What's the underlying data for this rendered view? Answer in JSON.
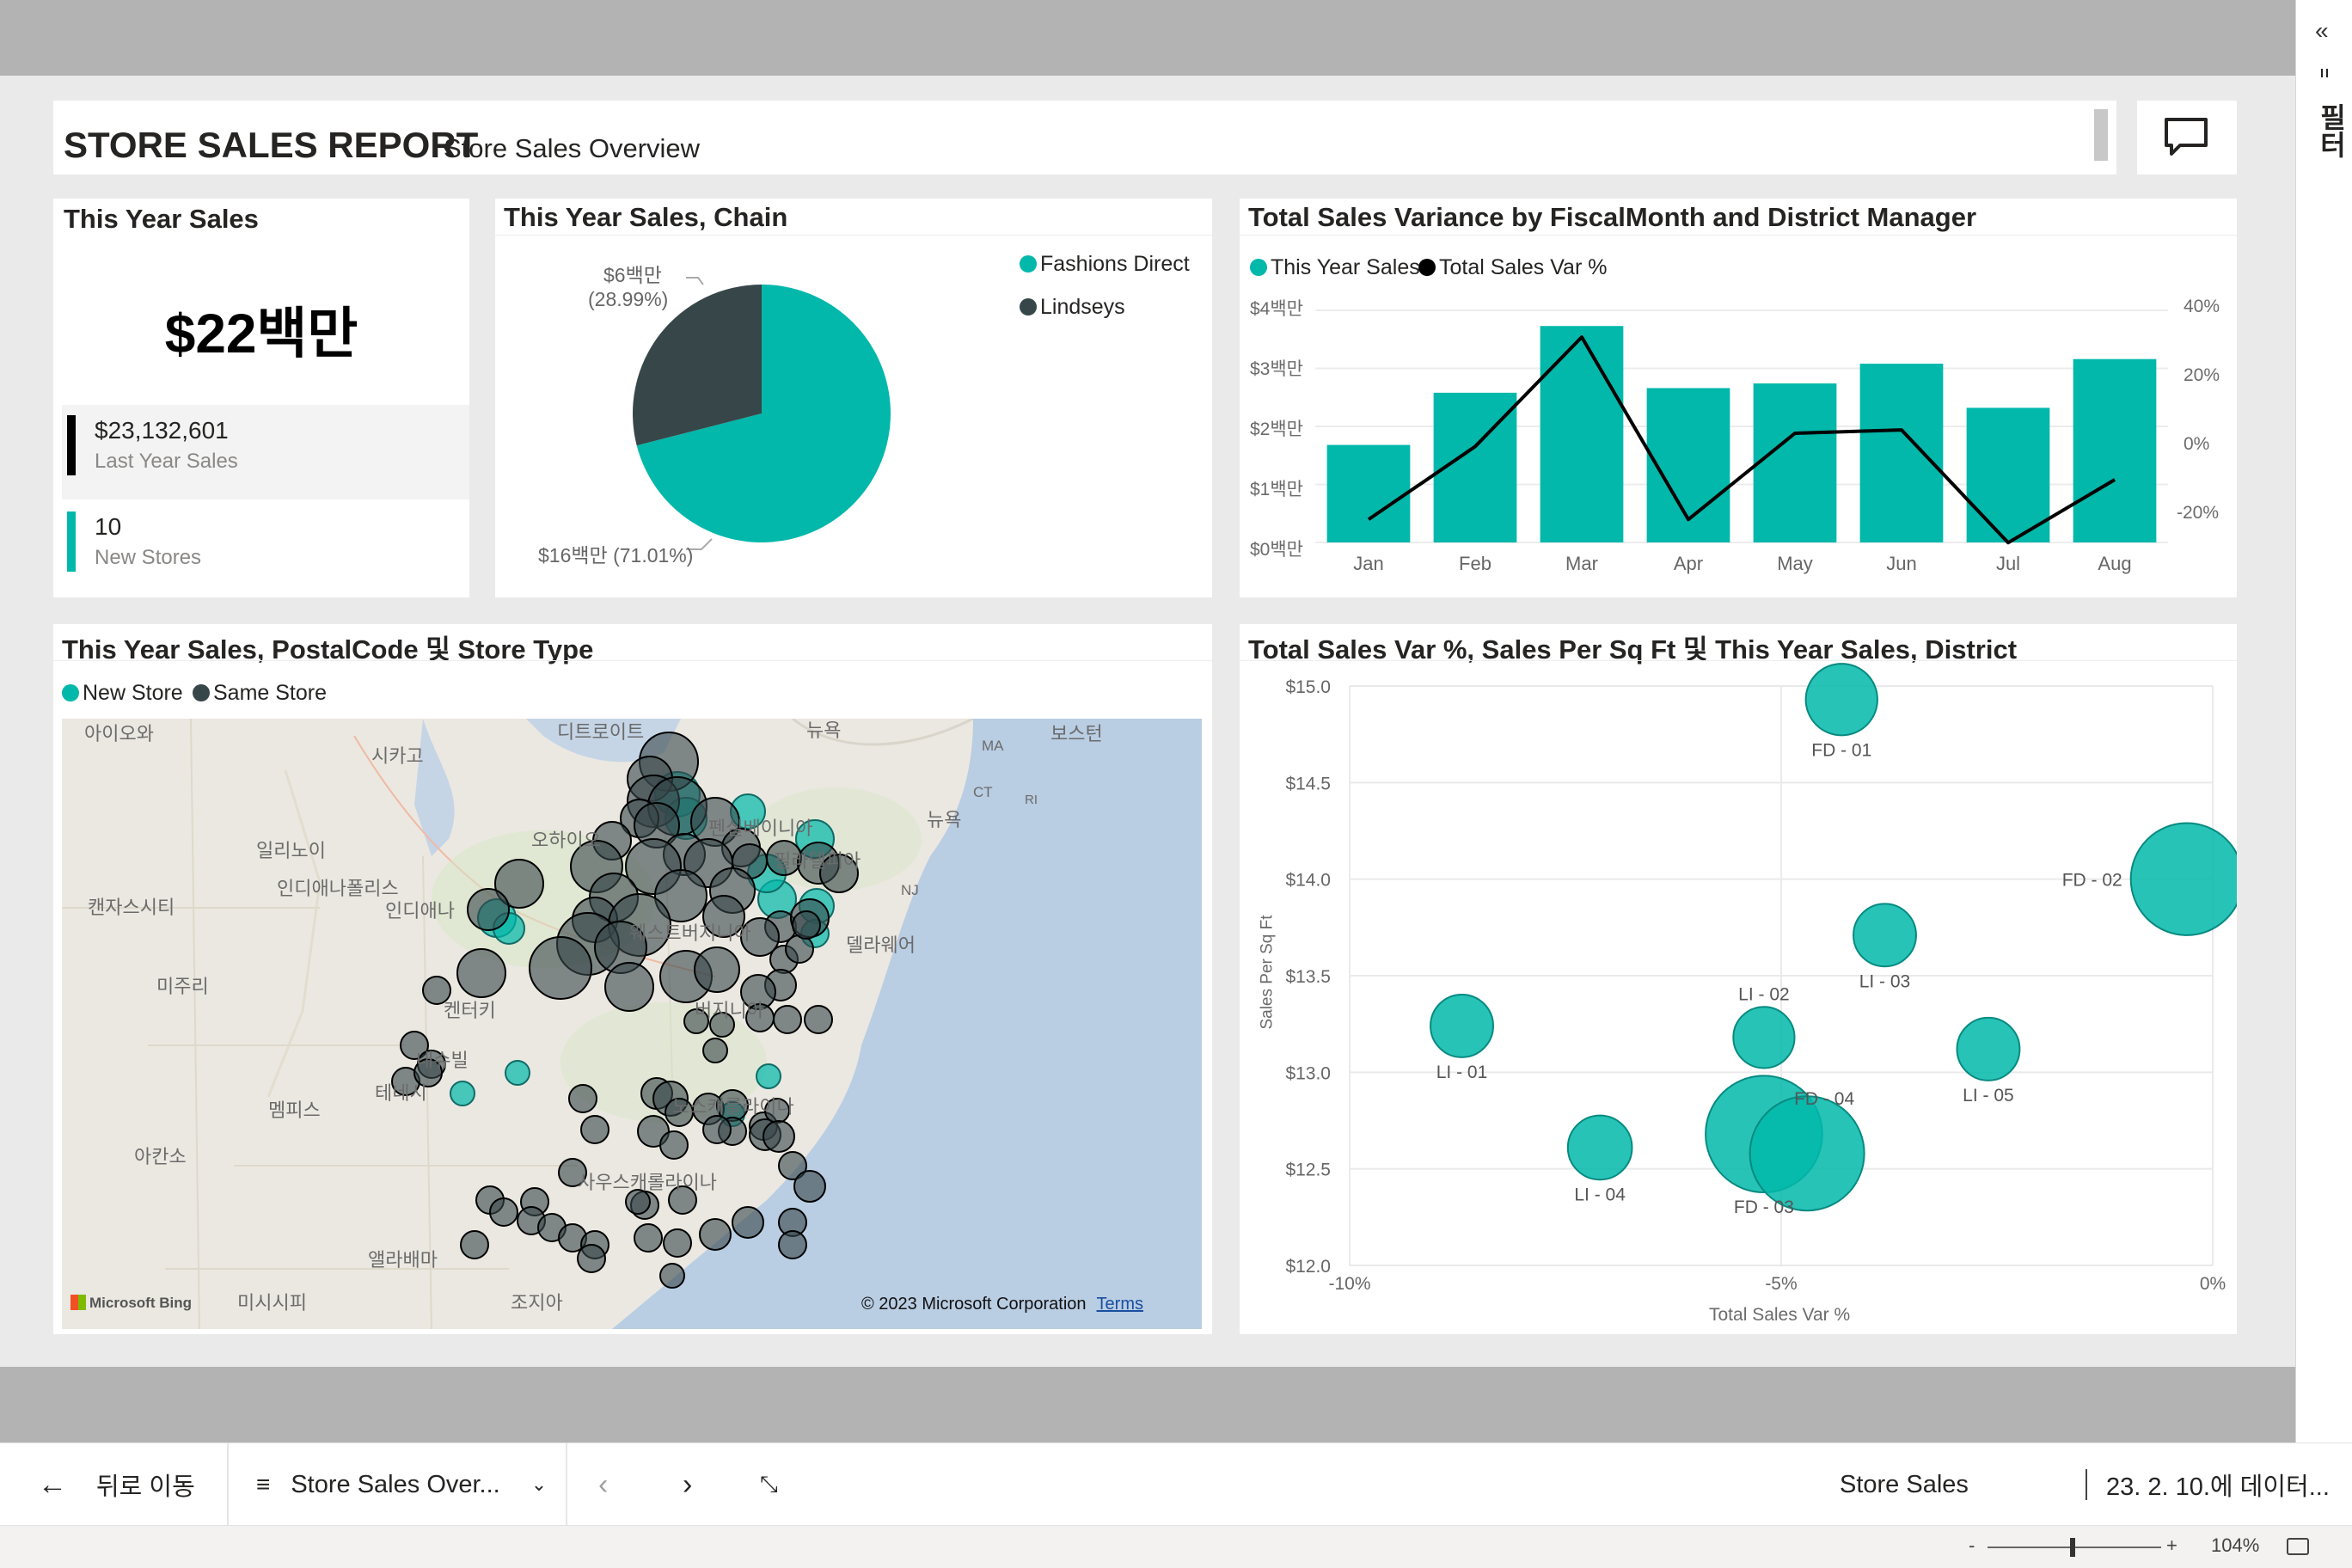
{
  "report": {
    "title": "STORE SALES REPORT",
    "subtitle": "Store Sales Overview",
    "comment_icon": "comment-icon"
  },
  "right_pane": {
    "collapse": "«",
    "label": "필터",
    "icon": "filter-icon"
  },
  "kpi": {
    "title": "This Year Sales",
    "value": "$22백만",
    "rows": [
      {
        "value": "$23,132,601",
        "label": "Last Year Sales",
        "color": "#000000"
      },
      {
        "value": "10",
        "label": "New Stores",
        "color": "#01b8aa"
      }
    ]
  },
  "pie": {
    "title": "This Year Sales, Chain",
    "label_small_1": "$6백만",
    "label_small_2": "(28.99%)",
    "label_big": "$16백만 (71.01%)",
    "legend": [
      {
        "name": "Fashions Direct",
        "color": "#01b8aa"
      },
      {
        "name": "Lindseys",
        "color": "#374649"
      }
    ]
  },
  "variance": {
    "title": "Total Sales Variance by FiscalMonth and District Manager",
    "legend": [
      {
        "name": "This Year Sales",
        "color": "#01b8aa"
      },
      {
        "name": "Total Sales Var %",
        "color": "#000000"
      }
    ],
    "y_left_ticks": [
      "$4백만",
      "$3백만",
      "$2백만",
      "$1백만",
      "$0백만"
    ],
    "y_right_ticks": [
      "40%",
      "20%",
      "0%",
      "-20%"
    ]
  },
  "map": {
    "title": "This Year Sales, PostalCode 및 Store Type",
    "legend": [
      {
        "name": "New Store",
        "color": "#01b8aa"
      },
      {
        "name": "Same Store",
        "color": "#374649"
      }
    ],
    "places": {
      "p1": "아이오와",
      "p2": "시카고",
      "p3": "디트로이트",
      "p4": "뉴욕",
      "p5": "보스턴",
      "p6": "일리노이",
      "p7": "인디애나폴리스",
      "p8": "인디애나",
      "p9": "캔자스시티",
      "p10": "미주리",
      "p11": "오하이오",
      "p12": "펜실베이니아",
      "p13": "필라델피아",
      "p14": "뉴욕",
      "p15": "NJ",
      "p16": "MA",
      "p17": "CT",
      "p18": "RI",
      "p19": "델라웨어",
      "p20": "켄터키",
      "p21": "테네시",
      "p22": "멤피스",
      "p23": "아칸소",
      "p24": "앨라배마",
      "p25": "미시시피",
      "p26": "조지아",
      "p27": "웨스트버지니아",
      "p28": "버지니아",
      "p29": "내슈빌",
      "p30": "노스캐롤라이나",
      "p31": "사우스캐롤라이나"
    },
    "bing": "Microsoft Bing",
    "copyright": "© 2023 Microsoft Corporation",
    "terms": "Terms"
  },
  "scatter": {
    "title": "Total Sales Var %, Sales Per Sq Ft 및 This Year Sales, District",
    "xlabel": "Total Sales Var %",
    "ylabel": "Sales Per Sq Ft"
  },
  "chart_data": [
    {
      "type": "pie",
      "title": "This Year Sales, Chain",
      "categories": [
        "Fashions Direct",
        "Lindseys"
      ],
      "values": [
        71.01,
        28.99
      ],
      "labels": [
        "$16백만 (71.01%)",
        "$6백만 (28.99%)"
      ],
      "colors": [
        "#01b8aa",
        "#374649"
      ]
    },
    {
      "type": "bar",
      "title": "Total Sales Variance by FiscalMonth and District Manager",
      "categories": [
        "Jan",
        "Feb",
        "Mar",
        "Apr",
        "May",
        "Jun",
        "Jul",
        "Aug"
      ],
      "series": [
        {
          "name": "This Year Sales",
          "values": [
            1.68,
            2.58,
            3.73,
            2.66,
            2.74,
            3.08,
            2.32,
            3.16
          ],
          "axis": "left",
          "kind": "bar"
        },
        {
          "name": "Total Sales Var %",
          "values": [
            -21,
            1,
            34,
            -21,
            5,
            6,
            -28,
            -9
          ],
          "axis": "right",
          "kind": "line"
        }
      ],
      "ylim": [
        0,
        4
      ],
      "y2lim": [
        -30,
        40
      ]
    },
    {
      "type": "scatter",
      "title": "Total Sales Var %, Sales Per Sq Ft 및 This Year Sales, District",
      "xlabel": "Total Sales Var %",
      "ylabel": "Sales Per Sq Ft",
      "xlim": [
        -10,
        0
      ],
      "ylim": [
        12.0,
        15.0
      ],
      "x_ticks": [
        "-10%",
        "-5%",
        "0%"
      ],
      "y_ticks": [
        "$15.0",
        "$14.5",
        "$14.0",
        "$13.5",
        "$13.0",
        "$12.5",
        "$12.0"
      ],
      "points": [
        {
          "label": "FD - 01",
          "x": -4.3,
          "y": 14.93,
          "size": 0.9
        },
        {
          "label": "FD - 02",
          "x": -0.3,
          "y": 14.0,
          "size": 0.95
        },
        {
          "label": "LI - 03",
          "x": -3.8,
          "y": 13.71,
          "size": 0.6
        },
        {
          "label": "LI - 02",
          "x": -5.2,
          "y": 13.18,
          "size": 0.55
        },
        {
          "label": "LI - 01",
          "x": -8.7,
          "y": 13.24,
          "size": 0.6
        },
        {
          "label": "LI - 05",
          "x": -2.6,
          "y": 13.12,
          "size": 0.6
        },
        {
          "label": "FD - 04",
          "x": -4.7,
          "y": 12.58,
          "size": 1.0
        },
        {
          "label": "FD - 03",
          "x": -5.2,
          "y": 12.68,
          "size": 1.05
        },
        {
          "label": "LI - 04",
          "x": -7.1,
          "y": 12.61,
          "size": 0.65
        }
      ],
      "color": "#01b8aa"
    }
  ],
  "nav": {
    "back": "뒤로 이동",
    "page_select": "Store Sales Over...",
    "report_name": "Store Sales",
    "refresh": "23. 2. 10.에 데이터..."
  },
  "status": {
    "minus": "-",
    "plus": "+",
    "zoom": "104%"
  }
}
